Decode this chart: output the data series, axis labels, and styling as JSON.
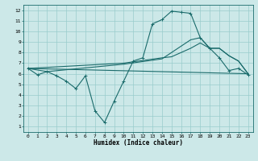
{
  "xlabel": "Humidex (Indice chaleur)",
  "bg_color": "#cce8e8",
  "grid_color": "#99cccc",
  "line_color": "#1a6b6b",
  "xlim": [
    -0.5,
    23.5
  ],
  "ylim": [
    0.5,
    12.5
  ],
  "xticks": [
    0,
    1,
    2,
    3,
    4,
    5,
    6,
    7,
    8,
    9,
    10,
    11,
    12,
    13,
    14,
    15,
    16,
    17,
    18,
    19,
    20,
    21,
    22,
    23
  ],
  "yticks": [
    1,
    2,
    3,
    4,
    5,
    6,
    7,
    8,
    9,
    10,
    11,
    12
  ],
  "line1_x": [
    0,
    1,
    2,
    3,
    4,
    5,
    6,
    7,
    8,
    9,
    10,
    11,
    12,
    13,
    14,
    15,
    16,
    17,
    18,
    19,
    20,
    21,
    22,
    23
  ],
  "line1_y": [
    6.5,
    5.9,
    6.2,
    5.8,
    5.3,
    4.6,
    5.8,
    2.5,
    1.4,
    3.4,
    5.3,
    7.2,
    7.5,
    10.7,
    11.1,
    11.9,
    11.8,
    11.7,
    9.4,
    8.4,
    7.5,
    6.3,
    6.5,
    5.9
  ],
  "line2_x": [
    0,
    23
  ],
  "line2_y": [
    6.5,
    6.0
  ],
  "line3_x": [
    0,
    10,
    14,
    15,
    17,
    18,
    19,
    20,
    21,
    22,
    23
  ],
  "line3_y": [
    6.5,
    7.0,
    7.5,
    7.6,
    8.4,
    8.9,
    8.4,
    8.4,
    7.7,
    7.2,
    6.0
  ],
  "line4_x": [
    0,
    2,
    10,
    14,
    17,
    18,
    19,
    20,
    21,
    22,
    23
  ],
  "line4_y": [
    6.5,
    6.2,
    6.9,
    7.4,
    9.2,
    9.4,
    8.4,
    8.4,
    7.7,
    7.2,
    6.0
  ]
}
